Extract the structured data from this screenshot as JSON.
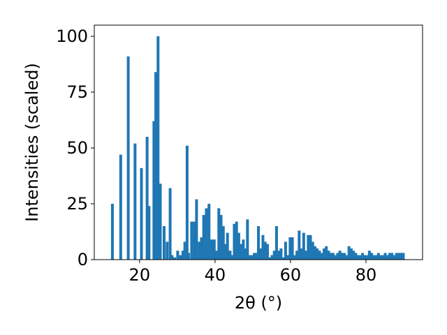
{
  "chart_data": {
    "type": "bar",
    "xlabel": "2θ (°)",
    "ylabel": "Intensities (scaled)",
    "xlim": [
      8,
      95
    ],
    "ylim": [
      0,
      105
    ],
    "x_ticks": [
      20,
      40,
      60,
      80
    ],
    "x_tick_labels": [
      "20",
      "40",
      "60",
      "80"
    ],
    "y_ticks": [
      0,
      25,
      50,
      75,
      100
    ],
    "y_tick_labels": [
      "0",
      "25",
      "50",
      "75",
      "100"
    ],
    "grid": false,
    "bar_color": "#1f77b4",
    "series": [
      {
        "x": [
          12.8,
          15.0,
          17.0,
          18.8,
          20.5,
          22.0,
          22.5,
          23.8,
          24.3,
          24.9,
          25.5,
          26.5,
          27.3,
          28.1,
          28.6,
          29.3,
          30.1,
          30.8,
          31.5,
          32.0,
          32.6,
          33.0,
          33.8,
          34.5,
          35.1,
          35.8,
          36.4,
          37.0,
          37.7,
          38.4,
          39.1,
          39.8,
          40.4,
          41.0,
          41.6,
          42.2,
          42.8,
          43.3,
          44.0,
          44.5,
          45.1,
          45.7,
          46.3,
          46.9,
          47.5,
          48.1,
          48.6,
          49.2,
          49.8,
          50.4,
          51.0,
          51.5,
          52.1,
          52.7,
          53.3,
          53.9,
          54.5,
          55.1,
          55.7,
          56.3,
          56.9,
          57.5,
          58.1,
          58.7,
          59.3,
          59.9,
          60.5,
          61.1,
          61.7,
          62.3,
          62.9,
          63.5,
          64.1,
          64.7,
          65.3,
          65.9,
          66.5,
          67.1,
          67.7,
          68.3,
          68.9,
          69.5,
          70.1,
          70.7,
          71.3,
          71.9,
          72.5,
          73.1,
          73.7,
          74.3,
          74.9,
          75.5,
          76.1,
          76.7,
          77.3,
          77.9,
          78.5,
          79.1,
          79.7,
          80.3,
          80.9,
          81.5,
          82.1,
          82.7,
          83.3,
          83.9,
          84.5,
          85.1,
          85.7,
          86.3,
          86.9,
          87.5,
          88.1,
          88.7,
          89.3,
          89.9
        ],
        "values": [
          25,
          47,
          91,
          52,
          41,
          55,
          24,
          62,
          84,
          100,
          34,
          15,
          8,
          32,
          2,
          1,
          4,
          2,
          4,
          8,
          51,
          3,
          17,
          17,
          27,
          8,
          10,
          20,
          23,
          25,
          9,
          9,
          4,
          23,
          20,
          15,
          7,
          12,
          4,
          2,
          16,
          17,
          12,
          7,
          9,
          5,
          18,
          2,
          2,
          3,
          3,
          15,
          5,
          11,
          8,
          7,
          1,
          2,
          4,
          15,
          4,
          5,
          1,
          8,
          2,
          10,
          10,
          2,
          4,
          13,
          5,
          12,
          4,
          11,
          11,
          8,
          6,
          5,
          4,
          3,
          5,
          6,
          4,
          3,
          3,
          2,
          3,
          4,
          3,
          3,
          2,
          6,
          5,
          4,
          3,
          2,
          2,
          3,
          2,
          2,
          4,
          3,
          2,
          2,
          3,
          2,
          2,
          3,
          2,
          3,
          3,
          2,
          3,
          3,
          3,
          3
        ]
      }
    ]
  }
}
